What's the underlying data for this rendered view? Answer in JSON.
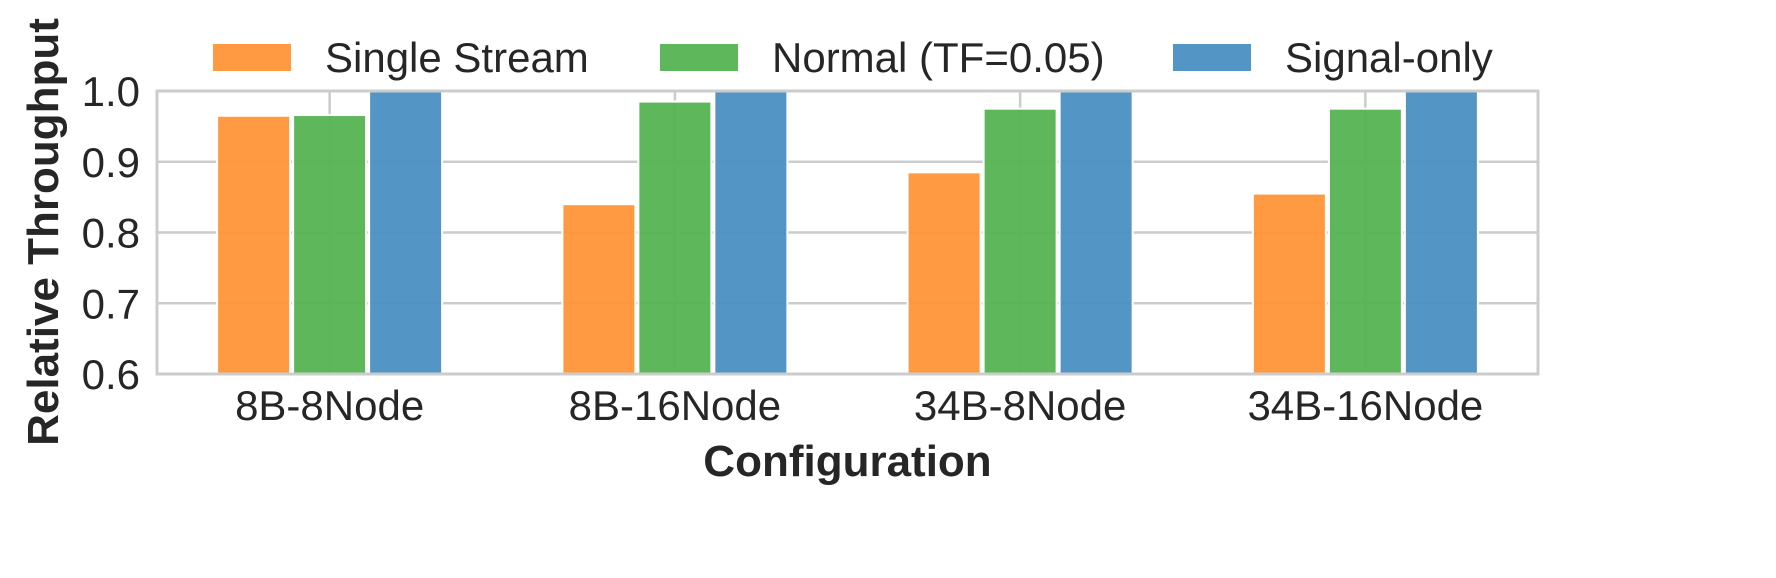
{
  "chart_data": {
    "type": "bar",
    "title": "",
    "xlabel": "Configuration",
    "ylabel": "Relative Throughput",
    "ylim": [
      0.6,
      1.0
    ],
    "yticks": [
      "0.6",
      "0.7",
      "0.8",
      "0.9",
      "1.0"
    ],
    "categories": [
      "8B-8Node",
      "8B-16Node",
      "34B-8Node",
      "34B-16Node"
    ],
    "series": [
      {
        "name": "Single Stream",
        "color": "#ff9538",
        "values": [
          0.965,
          0.84,
          0.885,
          0.855
        ]
      },
      {
        "name": "Normal (TF=0.05)",
        "color": "#55b352",
        "values": [
          0.966,
          0.985,
          0.975,
          0.975
        ]
      },
      {
        "name": "Signal-only",
        "color": "#4a8fc2",
        "values": [
          1.0,
          1.0,
          1.0,
          1.0
        ]
      }
    ],
    "legend_position": "top",
    "grid": true
  }
}
